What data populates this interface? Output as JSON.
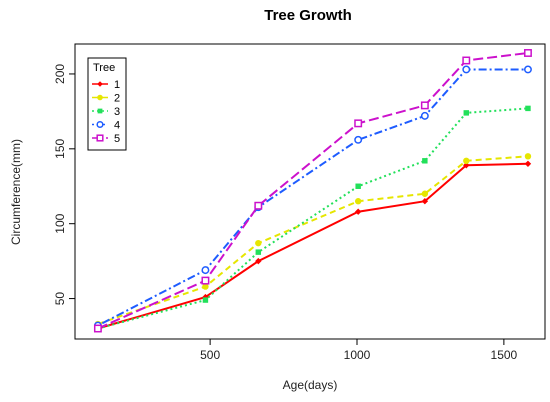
{
  "chart_data": {
    "type": "line",
    "title": "Tree Growth",
    "xlabel": "Age(days)",
    "ylabel": "Circumference(mm)",
    "xlim": [
      40,
      1640
    ],
    "ylim": [
      23,
      220
    ],
    "xticks": [
      500,
      1000,
      1500
    ],
    "yticks": [
      50,
      100,
      150,
      200
    ],
    "x": [
      118,
      484,
      664,
      1004,
      1231,
      1372,
      1582
    ],
    "legend": {
      "title": "Tree",
      "position": "top-left"
    },
    "series": [
      {
        "name": "1",
        "color": "#ff0000",
        "linestyle": "solid",
        "marker": "diamond",
        "values": [
          30,
          51,
          75,
          108,
          115,
          139,
          140
        ]
      },
      {
        "name": "2",
        "color": "#e6e600",
        "linestyle": "dashed",
        "marker": "circle",
        "values": [
          33,
          58,
          87,
          115,
          120,
          142,
          145
        ]
      },
      {
        "name": "3",
        "color": "#22e05a",
        "linestyle": "dotted",
        "marker": "square",
        "values": [
          30,
          49,
          81,
          125,
          142,
          174,
          177
        ]
      },
      {
        "name": "4",
        "color": "#1e5cff",
        "linestyle": "dotdash",
        "marker": "open-circle",
        "values": [
          32,
          69,
          111,
          156,
          172,
          203,
          203
        ]
      },
      {
        "name": "5",
        "color": "#cc11cc",
        "linestyle": "longdash",
        "marker": "open-square",
        "values": [
          30,
          62,
          112,
          167,
          179,
          209,
          214
        ]
      }
    ]
  }
}
